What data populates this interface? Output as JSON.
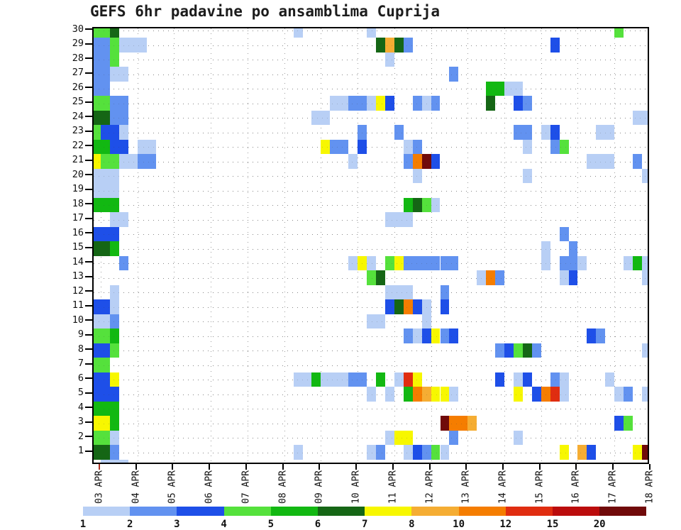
{
  "title": "GEFS 6hr padavine po ansamblima Cuprija",
  "chart_data": {
    "type": "heatmap",
    "title": "GEFS 6hr padavine po ansamblima Cuprija",
    "description": "6-hourly precipitation (mm) per GEFS ensemble member (1-30) for Cuprija",
    "y_axis": {
      "label": "ensemble member",
      "ticks": [
        1,
        2,
        3,
        4,
        5,
        6,
        7,
        8,
        9,
        10,
        11,
        12,
        13,
        14,
        15,
        16,
        17,
        18,
        19,
        20,
        21,
        22,
        23,
        24,
        25,
        26,
        27,
        28,
        29,
        30
      ]
    },
    "x_axis": {
      "label": "date",
      "tick_labels": [
        "03 APR",
        "04 APR",
        "05 APR",
        "06 APR",
        "07 APR",
        "08 APR",
        "09 APR",
        "10 APR",
        "11 APR",
        "12 APR",
        "13 APR",
        "14 APR",
        "15 APR",
        "16 APR",
        "17 APR",
        "18 APR"
      ],
      "slots_per_day": 4,
      "first_col_index": -1,
      "n_cols": 61
    },
    "legend": {
      "labels": [
        "1",
        "2",
        "3",
        "4",
        "5",
        "6",
        "7",
        "8",
        "10",
        "12",
        "15",
        "20"
      ],
      "colors": [
        "#b8cff5",
        "#6292f0",
        "#1e4fe8",
        "#55e13c",
        "#12b812",
        "#156615",
        "#f7f700",
        "#f5ad33",
        "#f57d00",
        "#e02d10",
        "#bb0c0c",
        "#700a0a"
      ]
    },
    "value_colors": {
      "1": "#b8cff5",
      "2": "#6292f0",
      "3": "#1e4fe8",
      "4": "#55e13c",
      "5": "#12b812",
      "6": "#156615",
      "7": "#f7f700",
      "8": "#f5ad33",
      "10": "#f57d00",
      "12": "#e02d10",
      "15": "#bb0c0c",
      "20": "#700a0a"
    },
    "cells": [
      [
        30,
        -1,
        4
      ],
      [
        30,
        0,
        4
      ],
      [
        30,
        1,
        6
      ],
      [
        30,
        21,
        1
      ],
      [
        30,
        29,
        1
      ],
      [
        30,
        56,
        4
      ],
      [
        29,
        -1,
        2
      ],
      [
        29,
        0,
        2
      ],
      [
        29,
        1,
        4
      ],
      [
        29,
        2,
        1
      ],
      [
        29,
        3,
        1
      ],
      [
        29,
        4,
        1
      ],
      [
        29,
        30,
        6
      ],
      [
        29,
        31,
        8
      ],
      [
        29,
        32,
        6
      ],
      [
        29,
        33,
        2
      ],
      [
        29,
        49,
        3
      ],
      [
        28,
        -1,
        2
      ],
      [
        28,
        0,
        2
      ],
      [
        28,
        1,
        4
      ],
      [
        28,
        31,
        1
      ],
      [
        27,
        -1,
        2
      ],
      [
        27,
        0,
        2
      ],
      [
        27,
        1,
        1
      ],
      [
        27,
        2,
        1
      ],
      [
        27,
        38,
        2
      ],
      [
        26,
        -1,
        2
      ],
      [
        26,
        0,
        2
      ],
      [
        26,
        42,
        5
      ],
      [
        26,
        43,
        5
      ],
      [
        26,
        44,
        1
      ],
      [
        26,
        45,
        1
      ],
      [
        25,
        -1,
        4
      ],
      [
        25,
        0,
        4
      ],
      [
        25,
        1,
        2
      ],
      [
        25,
        2,
        2
      ],
      [
        25,
        25,
        1
      ],
      [
        25,
        26,
        1
      ],
      [
        25,
        27,
        2
      ],
      [
        25,
        28,
        2
      ],
      [
        25,
        29,
        1
      ],
      [
        25,
        30,
        7
      ],
      [
        25,
        31,
        3
      ],
      [
        25,
        34,
        2
      ],
      [
        25,
        35,
        1
      ],
      [
        25,
        36,
        2
      ],
      [
        25,
        42,
        6
      ],
      [
        25,
        45,
        3
      ],
      [
        25,
        46,
        2
      ],
      [
        24,
        -1,
        6
      ],
      [
        24,
        0,
        6
      ],
      [
        24,
        1,
        2
      ],
      [
        24,
        2,
        2
      ],
      [
        24,
        23,
        1
      ],
      [
        24,
        24,
        1
      ],
      [
        24,
        58,
        1
      ],
      [
        24,
        59,
        1
      ],
      [
        23,
        -1,
        4
      ],
      [
        23,
        0,
        3
      ],
      [
        23,
        1,
        3
      ],
      [
        23,
        2,
        1
      ],
      [
        23,
        28,
        2
      ],
      [
        23,
        32,
        2
      ],
      [
        23,
        45,
        2
      ],
      [
        23,
        46,
        2
      ],
      [
        23,
        48,
        1
      ],
      [
        23,
        49,
        3
      ],
      [
        23,
        54,
        1
      ],
      [
        23,
        55,
        1
      ],
      [
        22,
        -1,
        5
      ],
      [
        22,
        0,
        5
      ],
      [
        22,
        1,
        3
      ],
      [
        22,
        2,
        3
      ],
      [
        22,
        4,
        1
      ],
      [
        22,
        5,
        1
      ],
      [
        22,
        24,
        7
      ],
      [
        22,
        25,
        2
      ],
      [
        22,
        26,
        2
      ],
      [
        22,
        28,
        3
      ],
      [
        22,
        33,
        1
      ],
      [
        22,
        34,
        2
      ],
      [
        22,
        46,
        1
      ],
      [
        22,
        49,
        2
      ],
      [
        22,
        50,
        4
      ],
      [
        21,
        -1,
        7
      ],
      [
        21,
        0,
        4
      ],
      [
        21,
        1,
        4
      ],
      [
        21,
        2,
        1
      ],
      [
        21,
        3,
        1
      ],
      [
        21,
        4,
        2
      ],
      [
        21,
        5,
        2
      ],
      [
        21,
        27,
        1
      ],
      [
        21,
        33,
        2
      ],
      [
        21,
        34,
        10
      ],
      [
        21,
        35,
        20
      ],
      [
        21,
        36,
        3
      ],
      [
        21,
        53,
        1
      ],
      [
        21,
        54,
        1
      ],
      [
        21,
        55,
        1
      ],
      [
        21,
        58,
        2
      ],
      [
        20,
        -1,
        1
      ],
      [
        20,
        0,
        1
      ],
      [
        20,
        1,
        1
      ],
      [
        20,
        34,
        1
      ],
      [
        20,
        46,
        1
      ],
      [
        20,
        59,
        1
      ],
      [
        19,
        -1,
        1
      ],
      [
        19,
        0,
        1
      ],
      [
        19,
        1,
        1
      ],
      [
        18,
        -1,
        5
      ],
      [
        18,
        0,
        5
      ],
      [
        18,
        1,
        5
      ],
      [
        18,
        33,
        5
      ],
      [
        18,
        34,
        6
      ],
      [
        18,
        35,
        4
      ],
      [
        18,
        36,
        1
      ],
      [
        17,
        1,
        1
      ],
      [
        17,
        2,
        1
      ],
      [
        17,
        31,
        1
      ],
      [
        17,
        32,
        1
      ],
      [
        17,
        33,
        1
      ],
      [
        16,
        -1,
        3
      ],
      [
        16,
        0,
        3
      ],
      [
        16,
        1,
        3
      ],
      [
        16,
        50,
        2
      ],
      [
        15,
        -1,
        6
      ],
      [
        15,
        0,
        6
      ],
      [
        15,
        1,
        5
      ],
      [
        15,
        48,
        1
      ],
      [
        15,
        51,
        2
      ],
      [
        14,
        2,
        2
      ],
      [
        14,
        27,
        1
      ],
      [
        14,
        28,
        7
      ],
      [
        14,
        29,
        1
      ],
      [
        14,
        31,
        4
      ],
      [
        14,
        32,
        7
      ],
      [
        14,
        33,
        2
      ],
      [
        14,
        34,
        2
      ],
      [
        14,
        35,
        2
      ],
      [
        14,
        36,
        2
      ],
      [
        14,
        37,
        2
      ],
      [
        14,
        38,
        2
      ],
      [
        14,
        48,
        1
      ],
      [
        14,
        50,
        2
      ],
      [
        14,
        51,
        2
      ],
      [
        14,
        52,
        1
      ],
      [
        14,
        57,
        1
      ],
      [
        14,
        58,
        5
      ],
      [
        14,
        59,
        1
      ],
      [
        13,
        29,
        4
      ],
      [
        13,
        30,
        6
      ],
      [
        13,
        41,
        1
      ],
      [
        13,
        42,
        10
      ],
      [
        13,
        43,
        2
      ],
      [
        13,
        50,
        1
      ],
      [
        13,
        51,
        3
      ],
      [
        13,
        59,
        1
      ],
      [
        12,
        1,
        1
      ],
      [
        12,
        31,
        1
      ],
      [
        12,
        32,
        1
      ],
      [
        12,
        33,
        1
      ],
      [
        12,
        37,
        2
      ],
      [
        11,
        -1,
        3
      ],
      [
        11,
        0,
        3
      ],
      [
        11,
        1,
        1
      ],
      [
        11,
        31,
        3
      ],
      [
        11,
        32,
        6
      ],
      [
        11,
        33,
        10
      ],
      [
        11,
        34,
        3
      ],
      [
        11,
        35,
        1
      ],
      [
        11,
        37,
        3
      ],
      [
        10,
        -1,
        1
      ],
      [
        10,
        0,
        1
      ],
      [
        10,
        1,
        2
      ],
      [
        10,
        29,
        1
      ],
      [
        10,
        30,
        1
      ],
      [
        10,
        35,
        1
      ],
      [
        9,
        -1,
        4
      ],
      [
        9,
        0,
        4
      ],
      [
        9,
        1,
        5
      ],
      [
        9,
        33,
        2
      ],
      [
        9,
        34,
        1
      ],
      [
        9,
        35,
        3
      ],
      [
        9,
        36,
        7
      ],
      [
        9,
        37,
        2
      ],
      [
        9,
        38,
        3
      ],
      [
        9,
        53,
        3
      ],
      [
        9,
        54,
        2
      ],
      [
        8,
        -1,
        3
      ],
      [
        8,
        0,
        3
      ],
      [
        8,
        1,
        4
      ],
      [
        8,
        43,
        2
      ],
      [
        8,
        44,
        3
      ],
      [
        8,
        45,
        4
      ],
      [
        8,
        46,
        6
      ],
      [
        8,
        47,
        2
      ],
      [
        8,
        59,
        1
      ],
      [
        7,
        -1,
        4
      ],
      [
        7,
        0,
        4
      ],
      [
        6,
        -1,
        3
      ],
      [
        6,
        0,
        3
      ],
      [
        6,
        1,
        7
      ],
      [
        6,
        21,
        1
      ],
      [
        6,
        22,
        1
      ],
      [
        6,
        23,
        5
      ],
      [
        6,
        24,
        1
      ],
      [
        6,
        25,
        1
      ],
      [
        6,
        26,
        1
      ],
      [
        6,
        27,
        2
      ],
      [
        6,
        28,
        2
      ],
      [
        6,
        30,
        5
      ],
      [
        6,
        32,
        1
      ],
      [
        6,
        33,
        12
      ],
      [
        6,
        34,
        7
      ],
      [
        6,
        43,
        3
      ],
      [
        6,
        45,
        1
      ],
      [
        6,
        46,
        3
      ],
      [
        6,
        49,
        2
      ],
      [
        6,
        50,
        1
      ],
      [
        6,
        55,
        1
      ],
      [
        5,
        -1,
        3
      ],
      [
        5,
        0,
        3
      ],
      [
        5,
        1,
        3
      ],
      [
        5,
        29,
        1
      ],
      [
        5,
        31,
        1
      ],
      [
        5,
        33,
        5
      ],
      [
        5,
        34,
        10
      ],
      [
        5,
        35,
        8
      ],
      [
        5,
        36,
        7
      ],
      [
        5,
        37,
        7
      ],
      [
        5,
        38,
        1
      ],
      [
        5,
        45,
        7
      ],
      [
        5,
        47,
        3
      ],
      [
        5,
        48,
        10
      ],
      [
        5,
        49,
        12
      ],
      [
        5,
        50,
        1
      ],
      [
        5,
        56,
        1
      ],
      [
        5,
        57,
        2
      ],
      [
        5,
        59,
        1
      ],
      [
        4,
        -1,
        5
      ],
      [
        4,
        0,
        5
      ],
      [
        4,
        1,
        5
      ],
      [
        3,
        -1,
        7
      ],
      [
        3,
        0,
        7
      ],
      [
        3,
        1,
        5
      ],
      [
        3,
        37,
        20
      ],
      [
        3,
        38,
        10
      ],
      [
        3,
        39,
        10
      ],
      [
        3,
        40,
        8
      ],
      [
        3,
        56,
        3
      ],
      [
        3,
        57,
        4
      ],
      [
        2,
        -1,
        4
      ],
      [
        2,
        0,
        4
      ],
      [
        2,
        1,
        1
      ],
      [
        2,
        31,
        1
      ],
      [
        2,
        32,
        7
      ],
      [
        2,
        33,
        7
      ],
      [
        2,
        38,
        2
      ],
      [
        2,
        45,
        1
      ],
      [
        1,
        -1,
        6
      ],
      [
        1,
        0,
        6
      ],
      [
        1,
        1,
        2
      ],
      [
        1,
        21,
        1
      ],
      [
        1,
        29,
        1
      ],
      [
        1,
        30,
        2
      ],
      [
        1,
        33,
        1
      ],
      [
        1,
        34,
        3
      ],
      [
        1,
        35,
        2
      ],
      [
        1,
        36,
        4
      ],
      [
        1,
        37,
        1
      ],
      [
        1,
        50,
        7
      ],
      [
        1,
        52,
        8
      ],
      [
        1,
        53,
        3
      ],
      [
        1,
        58,
        7
      ],
      [
        1,
        59,
        20
      ],
      [
        0,
        0,
        1
      ],
      [
        0,
        1,
        1
      ],
      [
        0,
        2,
        1
      ]
    ]
  }
}
